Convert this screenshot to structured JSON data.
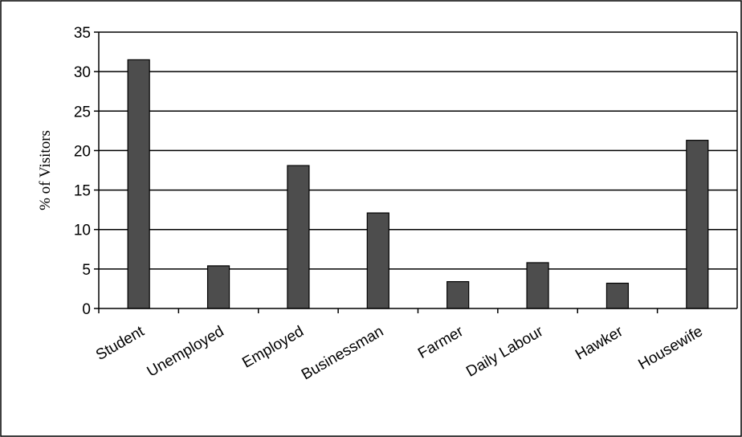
{
  "chart_data": {
    "type": "bar",
    "title": "",
    "xlabel": "",
    "ylabel": "% of Visitors",
    "categories": [
      "Student",
      "Unemployed",
      "Employed",
      "Businessman",
      "Farmer",
      "Daily Labour",
      "Hawker",
      "Housewife"
    ],
    "values": [
      31.5,
      5.4,
      18.1,
      12.1,
      3.4,
      5.8,
      3.2,
      21.3
    ],
    "ylim": [
      0,
      35
    ],
    "yticks": [
      "0",
      "5",
      "10",
      "15",
      "20",
      "25",
      "30",
      "35"
    ],
    "grid": true,
    "legend": "none",
    "colors": {
      "bar": "#4d4d4d",
      "bar_stroke": "#000000",
      "grid": "#000000",
      "frame": "#000000"
    }
  }
}
